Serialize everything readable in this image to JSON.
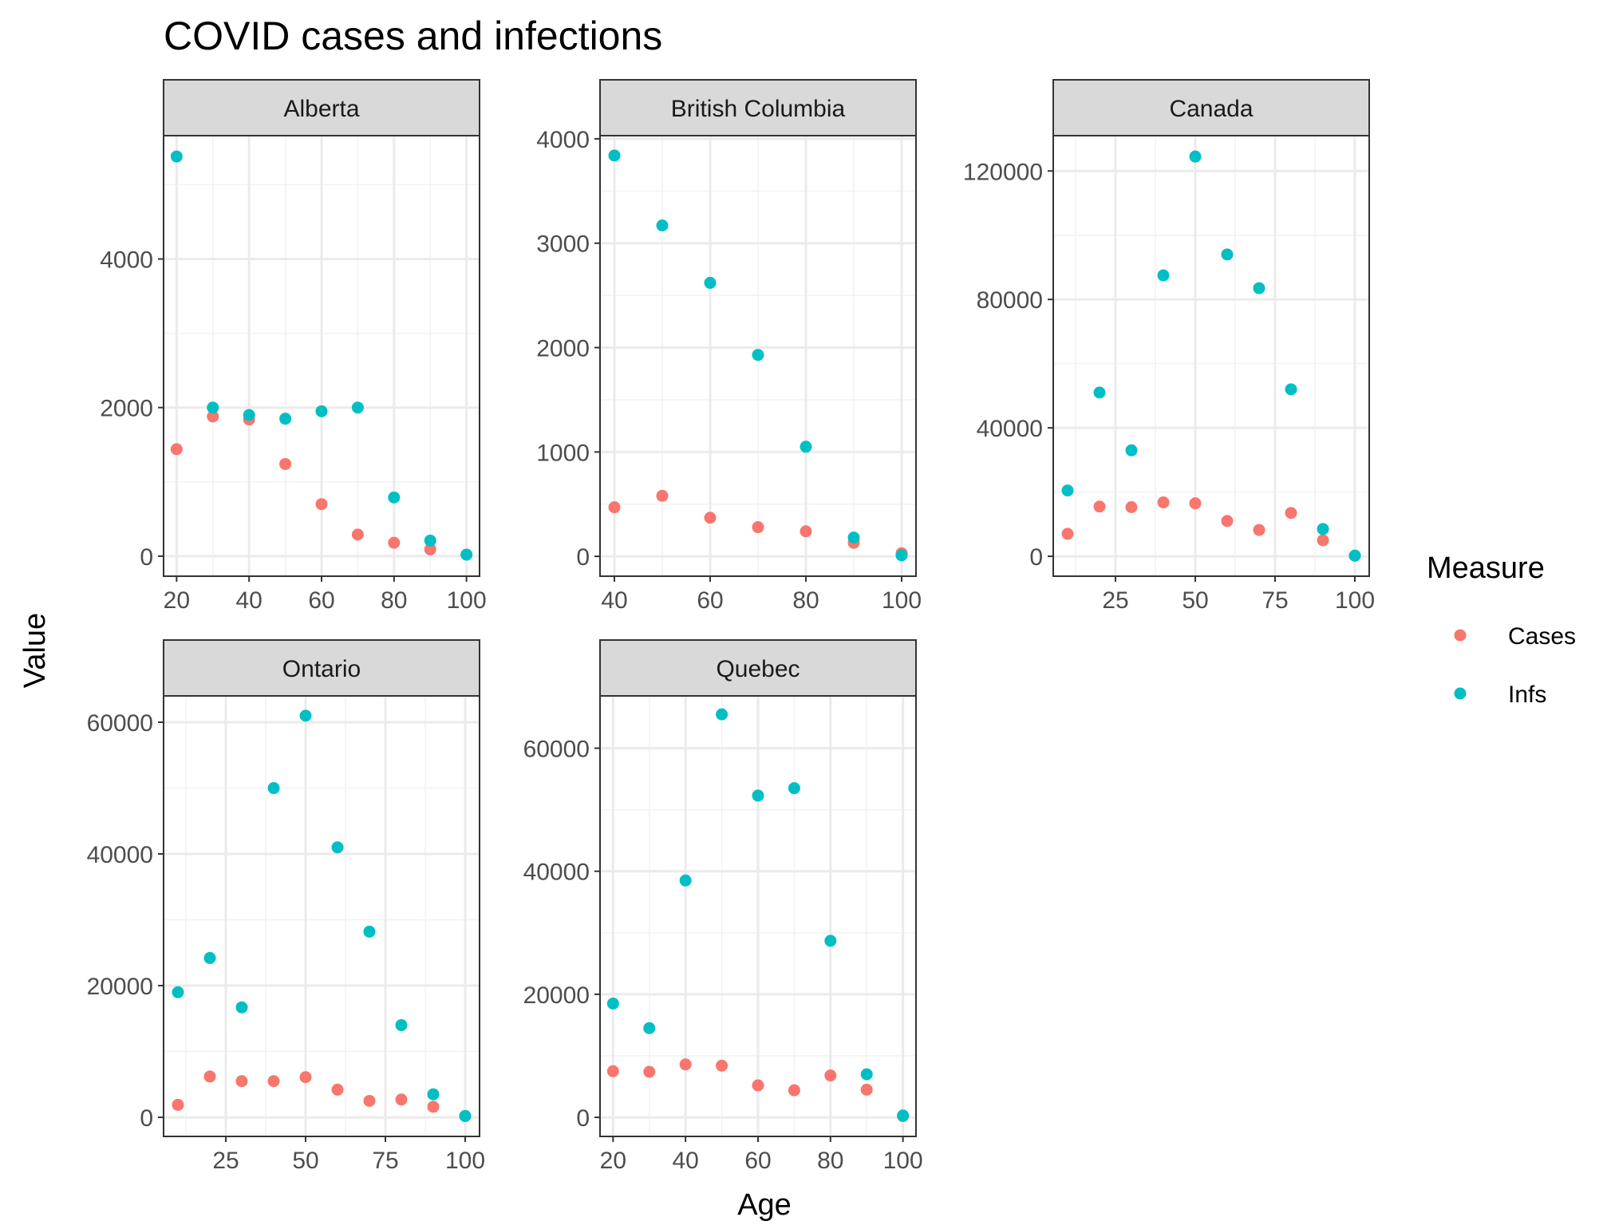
{
  "chart_data": {
    "type": "scatter",
    "title": "COVID cases and infections",
    "xlabel": "Age",
    "ylabel": "Value",
    "legend": {
      "title": "Measure",
      "position": "right",
      "entries": [
        {
          "name": "Cases",
          "color": "#F8766D"
        },
        {
          "name": "Infs",
          "color": "#00BFC4"
        }
      ]
    },
    "panels": [
      {
        "name": "Alberta",
        "xlim": [
          16.4,
          103.6
        ],
        "ylim": [
          -270,
          5660
        ],
        "xticks": [
          20,
          40,
          60,
          80,
          100
        ],
        "yticks": [
          0,
          2000,
          4000
        ],
        "xticklabels": [
          "20",
          "40",
          "60",
          "80",
          "100"
        ],
        "yticklabels": [
          "0",
          "2000",
          "4000"
        ],
        "series": [
          {
            "name": "Cases",
            "x": [
              20,
              30,
              40,
              50,
              60,
              70,
              80,
              90,
              100
            ],
            "y": [
              1440,
              1880,
              1840,
              1240,
              700,
              290,
              180,
              90,
              20
            ]
          },
          {
            "name": "Infs",
            "x": [
              20,
              30,
              40,
              50,
              60,
              70,
              80,
              90,
              100
            ],
            "y": [
              5380,
              2000,
              1900,
              1850,
              1950,
              2000,
              790,
              210,
              20
            ]
          }
        ]
      },
      {
        "name": "British Columbia",
        "xlim": [
          37,
          103
        ],
        "ylim": [
          -190,
          4030
        ],
        "xticks": [
          40,
          60,
          80,
          100
        ],
        "yticks": [
          0,
          1000,
          2000,
          3000,
          4000
        ],
        "xticklabels": [
          "40",
          "60",
          "80",
          "100"
        ],
        "yticklabels": [
          "0",
          "1000",
          "2000",
          "3000",
          "4000"
        ],
        "series": [
          {
            "name": "Cases",
            "x": [
              40,
              50,
              60,
              70,
              80,
              90,
              100
            ],
            "y": [
              470,
              580,
              370,
              280,
              240,
              130,
              30
            ]
          },
          {
            "name": "Infs",
            "x": [
              40,
              50,
              60,
              70,
              80,
              90,
              100
            ],
            "y": [
              3840,
              3170,
              2620,
              1930,
              1050,
              180,
              10
            ]
          }
        ]
      },
      {
        "name": "Canada",
        "xlim": [
          5.5,
          104.5
        ],
        "ylim": [
          -6200,
          131000
        ],
        "xticks": [
          25,
          50,
          75,
          100
        ],
        "yticks": [
          0,
          40000,
          80000,
          120000
        ],
        "xticklabels": [
          "25",
          "50",
          "75",
          "100"
        ],
        "yticklabels": [
          "0",
          "40000",
          "80000",
          "120000"
        ],
        "series": [
          {
            "name": "Cases",
            "x": [
              10,
              20,
              30,
              40,
              50,
              60,
              70,
              80,
              90,
              100
            ],
            "y": [
              7000,
              15500,
              15300,
              16800,
              16500,
              11000,
              8200,
              13500,
              5000,
              200
            ]
          },
          {
            "name": "Infs",
            "x": [
              10,
              20,
              30,
              40,
              50,
              60,
              70,
              80,
              90,
              100
            ],
            "y": [
              20500,
              51000,
              33000,
              87500,
              124500,
              94000,
              83500,
              52000,
              8500,
              200
            ]
          }
        ]
      },
      {
        "name": "Ontario",
        "xlim": [
          5.5,
          104.5
        ],
        "ylim": [
          -2900,
          64000
        ],
        "xticks": [
          25,
          50,
          75,
          100
        ],
        "yticks": [
          0,
          20000,
          40000,
          60000
        ],
        "xticklabels": [
          "25",
          "50",
          "75",
          "100"
        ],
        "yticklabels": [
          "0",
          "20000",
          "40000",
          "60000"
        ],
        "series": [
          {
            "name": "Cases",
            "x": [
              10,
              20,
              30,
              40,
              50,
              60,
              70,
              80,
              90,
              100
            ],
            "y": [
              1900,
              6200,
              5500,
              5500,
              6100,
              4200,
              2500,
              2700,
              1600,
              200
            ]
          },
          {
            "name": "Infs",
            "x": [
              10,
              20,
              30,
              40,
              50,
              60,
              70,
              80,
              90,
              100
            ],
            "y": [
              19000,
              24200,
              16700,
              50000,
              61000,
              41000,
              28200,
              14000,
              3500,
              200
            ]
          }
        ]
      },
      {
        "name": "Quebec",
        "xlim": [
          16.4,
          103.6
        ],
        "ylim": [
          -3100,
          68500
        ],
        "xticks": [
          20,
          40,
          60,
          80,
          100
        ],
        "yticks": [
          0,
          20000,
          40000,
          60000
        ],
        "xticklabels": [
          "20",
          "40",
          "60",
          "80",
          "100"
        ],
        "yticklabels": [
          "0",
          "20000",
          "40000",
          "60000"
        ],
        "series": [
          {
            "name": "Cases",
            "x": [
              20,
              30,
              40,
              50,
              60,
              70,
              80,
              90,
              100
            ],
            "y": [
              7500,
              7400,
              8600,
              8400,
              5200,
              4400,
              6800,
              4500,
              200
            ]
          },
          {
            "name": "Infs",
            "x": [
              20,
              30,
              40,
              50,
              60,
              70,
              80,
              90,
              100
            ],
            "y": [
              18500,
              14500,
              38500,
              65500,
              52300,
              53500,
              28700,
              7000,
              300
            ]
          }
        ]
      }
    ]
  }
}
